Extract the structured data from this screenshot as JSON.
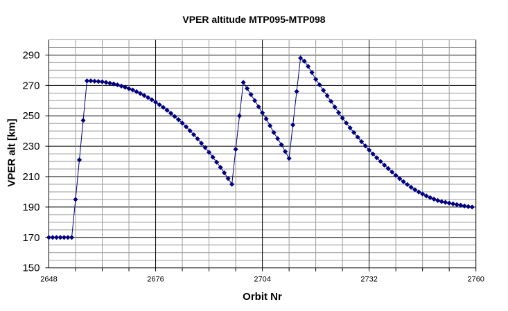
{
  "chart_data": {
    "type": "line",
    "title": "VPER altitude  MTP095-MTP098",
    "xlabel": "Orbit Nr",
    "ylabel": "VPER alt [km]",
    "xlim": [
      2648,
      2760
    ],
    "ylim": [
      150,
      300
    ],
    "xticks": [
      2648,
      2676,
      2704,
      2732,
      2760
    ],
    "yticks": [
      150,
      170,
      190,
      210,
      230,
      250,
      270,
      290
    ],
    "grid": true,
    "legend": "none",
    "series_color": "#000080",
    "series": [
      {
        "name": "VPER alt",
        "x": [
          2648,
          2649,
          2650,
          2651,
          2652,
          2653,
          2654,
          2655,
          2656,
          2657,
          2658,
          2659,
          2660,
          2661,
          2662,
          2663,
          2664,
          2665,
          2666,
          2667,
          2668,
          2669,
          2670,
          2671,
          2672,
          2673,
          2674,
          2675,
          2676,
          2677,
          2678,
          2679,
          2680,
          2681,
          2682,
          2683,
          2684,
          2685,
          2686,
          2687,
          2688,
          2689,
          2690,
          2691,
          2692,
          2693,
          2694,
          2695,
          2696,
          2697,
          2698,
          2699,
          2700,
          2701,
          2702,
          2703,
          2704,
          2705,
          2706,
          2707,
          2708,
          2709,
          2710,
          2711,
          2712,
          2713,
          2714,
          2715,
          2716,
          2717,
          2718,
          2719,
          2720,
          2721,
          2722,
          2723,
          2724,
          2725,
          2726,
          2727,
          2728,
          2729,
          2730,
          2731,
          2732,
          2733,
          2734,
          2735,
          2736,
          2737,
          2738,
          2739,
          2740,
          2741,
          2742,
          2743,
          2744,
          2745,
          2746,
          2747,
          2748,
          2749,
          2750,
          2751,
          2752,
          2753,
          2754,
          2755,
          2756,
          2757,
          2758,
          2759
        ],
        "y": [
          170,
          170,
          170,
          170,
          170,
          170,
          170,
          195,
          221,
          247,
          273,
          273,
          272.8,
          272.6,
          272.4,
          272,
          271.5,
          271,
          270.4,
          269.6,
          268.8,
          267.9,
          267,
          265.9,
          264.7,
          263.4,
          262,
          260.6,
          259,
          257.3,
          255.6,
          253.7,
          251.7,
          249.6,
          247.5,
          245.2,
          242.8,
          240.2,
          237.6,
          234.9,
          232,
          229.1,
          226,
          222.8,
          219.5,
          216.1,
          212.5,
          208.8,
          205,
          228,
          250,
          272,
          268,
          264,
          260,
          256,
          252,
          248,
          243.5,
          239,
          235,
          231,
          226.5,
          222,
          244,
          266,
          288,
          286,
          282.5,
          278.5,
          274,
          270.4,
          266.8,
          263.2,
          259.5,
          255.8,
          252.1,
          248.5,
          245.3,
          242.1,
          239,
          236,
          233,
          230.2,
          227.5,
          224.9,
          222.4,
          220,
          217.6,
          215.3,
          213,
          210.8,
          208.7,
          206.7,
          204.8,
          203,
          201.4,
          199.9,
          198.6,
          197.3,
          196.2,
          195.2,
          194.3,
          193.6,
          193.1,
          192.6,
          192.1,
          191.6,
          191.2,
          190.7,
          190.3,
          190
        ]
      }
    ]
  }
}
